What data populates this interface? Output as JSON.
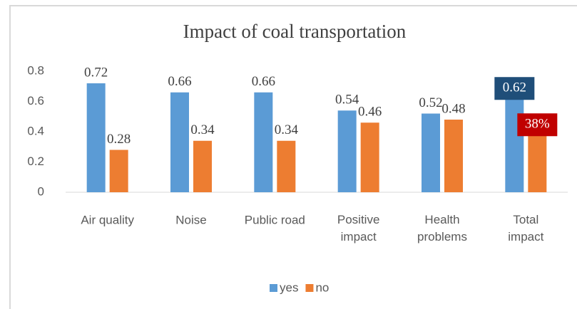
{
  "chart_data": {
    "type": "bar",
    "title": "Impact of coal transportation",
    "categories": [
      "Air quality",
      "Noise",
      "Public road",
      "Positive\nimpact",
      "Health\nproblems",
      "Total\nimpact"
    ],
    "series": [
      {
        "name": "yes",
        "color": "#5b9bd5",
        "values": [
          0.72,
          0.66,
          0.66,
          0.54,
          0.52,
          0.62
        ],
        "label_box": [
          null,
          null,
          null,
          null,
          null,
          "#1f4e79"
        ]
      },
      {
        "name": "no",
        "color": "#ed7d31",
        "values": [
          0.28,
          0.34,
          0.34,
          0.46,
          0.48,
          0.38
        ],
        "value_labels": [
          "0.28",
          "0.34",
          "0.34",
          "0.46",
          "0.48",
          "38%"
        ],
        "label_box": [
          null,
          null,
          null,
          null,
          null,
          "#c00000"
        ]
      }
    ],
    "ylim": [
      0,
      0.9
    ],
    "yticks": [
      0,
      0.2,
      0.4,
      0.6,
      0.8
    ],
    "grid": false,
    "legend": "bottom"
  }
}
